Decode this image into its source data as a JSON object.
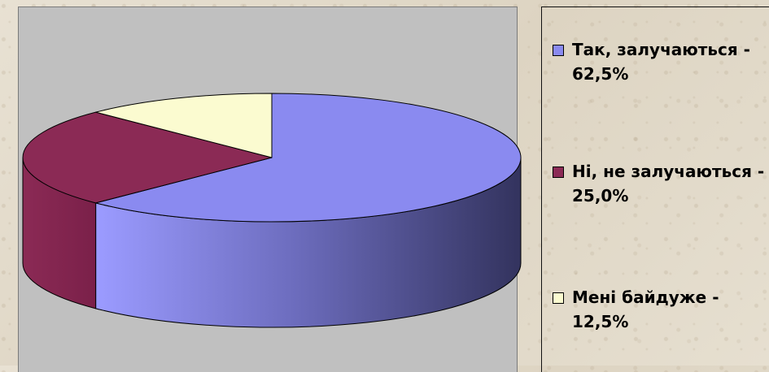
{
  "chart_data": {
    "type": "pie",
    "style": "3d",
    "title": "",
    "slices": [
      {
        "label": "Так, залучаються - 62,5%",
        "value": 62.5,
        "color": "#8a8af0"
      },
      {
        "label": "Ні, не залучаються - 25,0%",
        "value": 25.0,
        "color": "#8b2a55"
      },
      {
        "label": "Мені байдуже - 12,5%",
        "value": 12.5,
        "color": "#fbfbd0"
      }
    ],
    "legend_position": "right",
    "plot_background": "#c0c0c0"
  },
  "legend": {
    "items": [
      {
        "text": "Так, залучаються - 62,5%",
        "color": "#8a8af0"
      },
      {
        "text": "Ні, не залучаються - 25,0%",
        "color": "#8b2a55"
      },
      {
        "text": "Мені байдуже - 12,5%",
        "color": "#fbfbd0"
      }
    ]
  }
}
